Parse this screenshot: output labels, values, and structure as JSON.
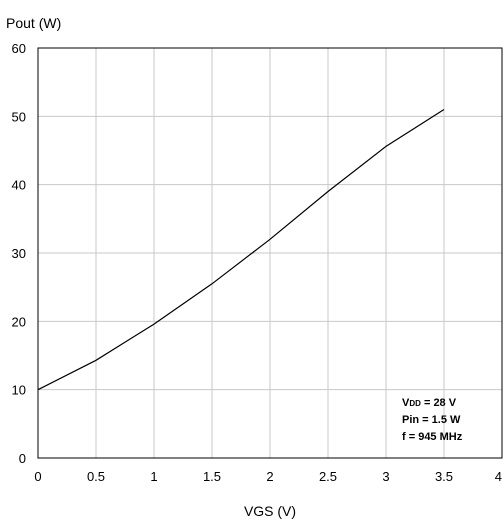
{
  "chart_data": {
    "type": "line",
    "title": "",
    "xlabel": "VGS (V)",
    "ylabel": "Pout (W)",
    "xlim": [
      0,
      4
    ],
    "ylim": [
      0,
      60
    ],
    "x_ticks": [
      "0",
      "0.5",
      "1",
      "1.5",
      "2",
      "2.5",
      "3",
      "3.5",
      "4"
    ],
    "x_tick_values": [
      0,
      0.5,
      1,
      1.5,
      2,
      2.5,
      3,
      3.5,
      4
    ],
    "y_ticks": [
      "0",
      "10",
      "20",
      "30",
      "40",
      "50",
      "60"
    ],
    "y_tick_values": [
      0,
      10,
      20,
      30,
      40,
      50,
      60
    ],
    "grid": true,
    "legend": "none",
    "line_color": "#000000",
    "grid_color": "#c8c8c8",
    "series": [
      {
        "x": [
          0,
          0.5,
          1,
          1.5,
          2,
          2.5,
          3,
          3.5
        ],
        "y": [
          10,
          14.3,
          19.6,
          25.5,
          32,
          39,
          45.6,
          51
        ]
      }
    ],
    "annotation": {
      "line1_main": "V",
      "line1_sub": "DD",
      "line1_rest": " = 28 V",
      "line2": "Pin = 1.5 W",
      "line3": "f = 945 MHz"
    }
  }
}
